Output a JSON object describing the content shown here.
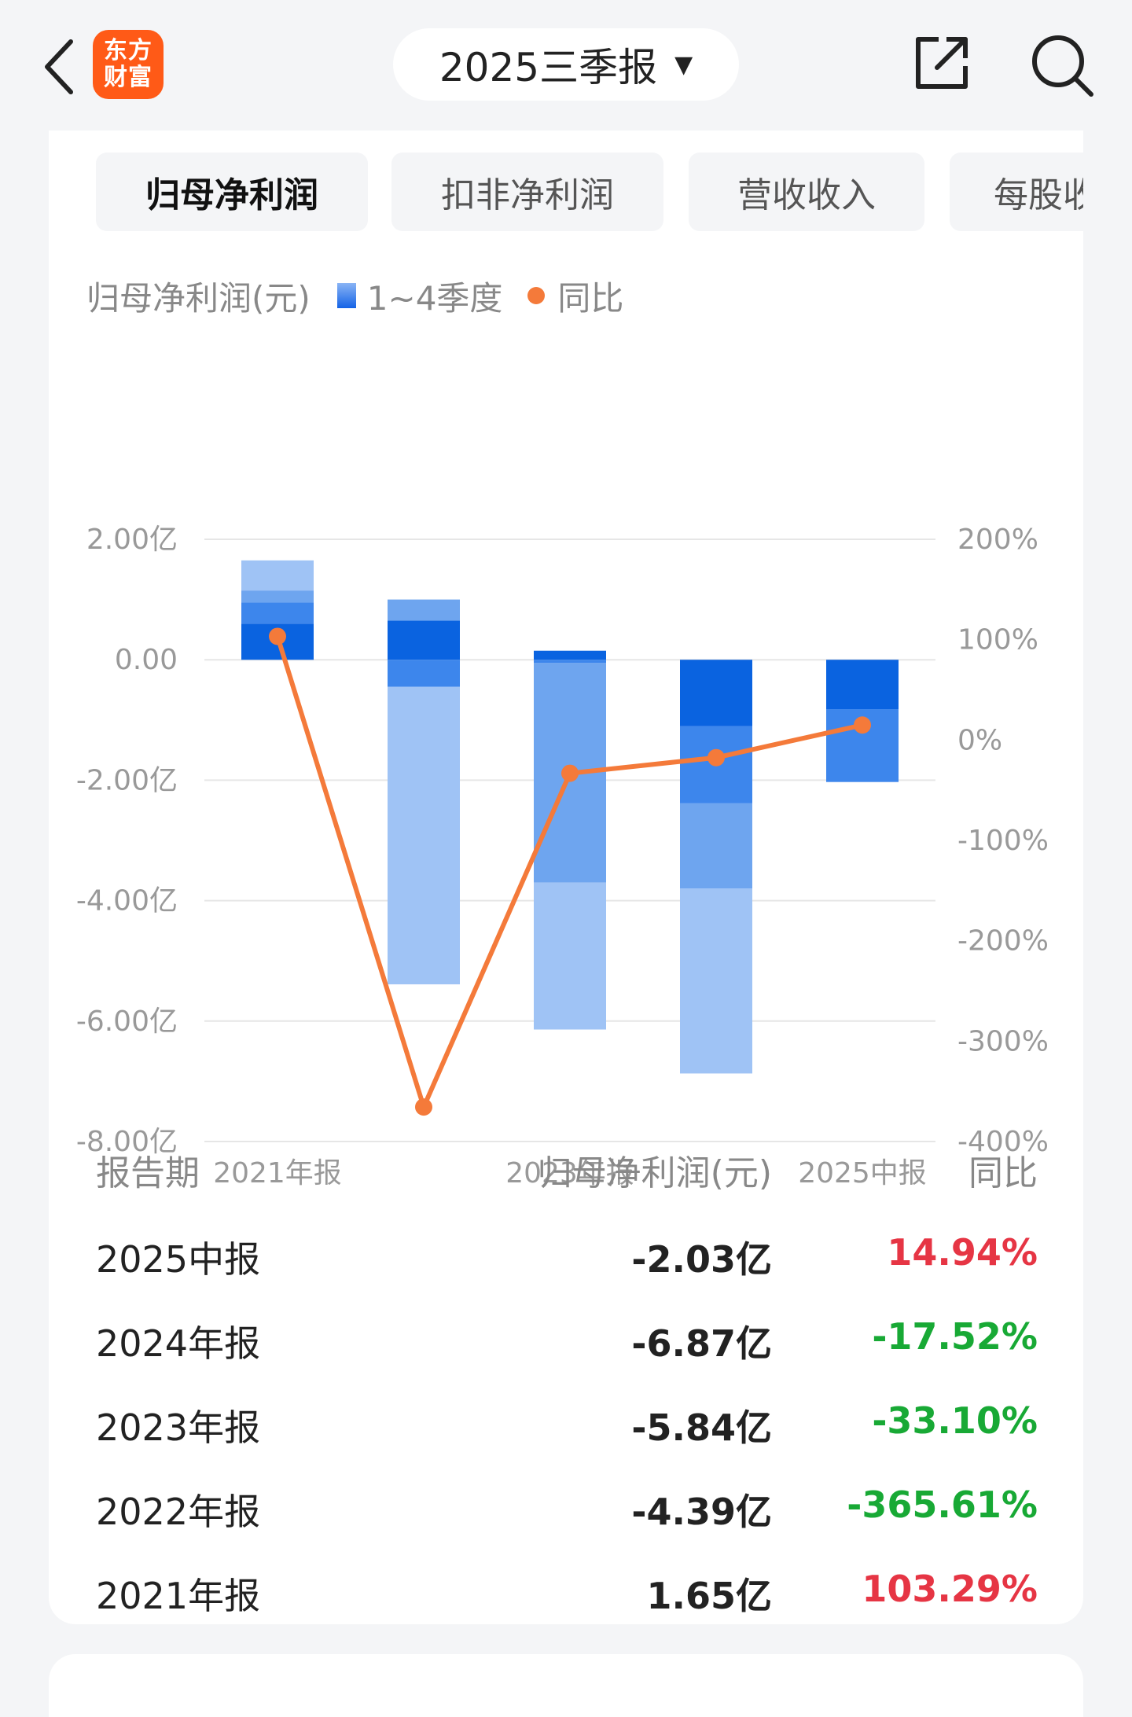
{
  "header": {
    "logo_line1": "东方",
    "logo_line2": "财富",
    "period": "2025三季报",
    "caret": "▼"
  },
  "tabs": [
    {
      "label": "归母净利润",
      "active": true
    },
    {
      "label": "扣非净利润",
      "active": false
    },
    {
      "label": "营收收入",
      "active": false
    },
    {
      "label": "每股收益",
      "active": false
    }
  ],
  "legend": {
    "title": "归母净利润(元)",
    "series_label": "1~4季度",
    "line_label": "同比"
  },
  "colors": {
    "q_dark": "#0a63e0",
    "q_mid": "#3d86ec",
    "q_light": "#6ea5ef",
    "q_lighter": "#9fc3f5",
    "line": "#f47a3a",
    "positive": "#e63544",
    "negative": "#18a935"
  },
  "chart_data": {
    "type": "bar",
    "categories": [
      "2021年报",
      "2022年报",
      "2023年报",
      "2024年报",
      "2025中报"
    ],
    "x_tick_labels": [
      "2021年报",
      "",
      "2023年报",
      "",
      "2025中报"
    ],
    "y_ticks": [
      "2.00亿",
      "0.00",
      "-2.00亿",
      "-4.00亿",
      "-6.00亿",
      "-8.00亿"
    ],
    "y2_ticks": [
      "200%",
      "100%",
      "0%",
      "-100%",
      "-200%",
      "-300%",
      "-400%"
    ],
    "ylim": [
      -8,
      2
    ],
    "y2lim": [
      -400,
      200
    ],
    "series": [
      {
        "name": "Q1",
        "values": [
          0.6,
          0.65,
          0.15,
          -1.1,
          -0.82
        ]
      },
      {
        "name": "Q2",
        "values": [
          0.35,
          -0.45,
          -0.05,
          -1.28,
          -1.21
        ]
      },
      {
        "name": "Q3",
        "values": [
          0.2,
          0.35,
          -3.65,
          -1.42,
          null
        ]
      },
      {
        "name": "Q4",
        "values": [
          0.5,
          -4.94,
          -2.44,
          -3.07,
          null
        ]
      }
    ],
    "totals": [
      1.65,
      -4.39,
      -5.84,
      -6.87,
      -2.03
    ],
    "yoy": [
      103.29,
      -365.61,
      -33.1,
      -17.52,
      14.94
    ]
  },
  "table": {
    "headers": [
      "报告期",
      "归母净利润(元)",
      "同比"
    ],
    "rows": [
      {
        "period": "2025中报",
        "value": "-2.03亿",
        "yoy": "14.94%",
        "sign": "pos"
      },
      {
        "period": "2024年报",
        "value": "-6.87亿",
        "yoy": "-17.52%",
        "sign": "neg"
      },
      {
        "period": "2023年报",
        "value": "-5.84亿",
        "yoy": "-33.10%",
        "sign": "neg"
      },
      {
        "period": "2022年报",
        "value": "-4.39亿",
        "yoy": "-365.61%",
        "sign": "neg"
      },
      {
        "period": "2021年报",
        "value": "1.65亿",
        "yoy": "103.29%",
        "sign": "pos"
      }
    ]
  }
}
